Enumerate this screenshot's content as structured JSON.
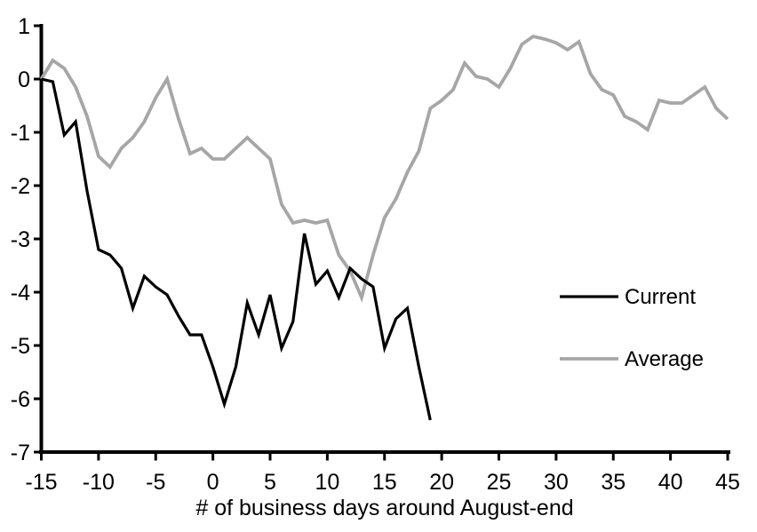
{
  "chart_data": {
    "type": "line",
    "title": "",
    "xlabel": "# of business days around August-end",
    "ylabel": "",
    "xlim": [
      -15,
      45
    ],
    "ylim": [
      -7,
      1
    ],
    "x_ticks": [
      -15,
      -10,
      -5,
      0,
      5,
      10,
      15,
      20,
      25,
      30,
      35,
      40,
      45
    ],
    "y_ticks": [
      1,
      0,
      -1,
      -2,
      -3,
      -4,
      -5,
      -6,
      -7
    ],
    "grid": false,
    "legend_position": "middle-right",
    "axis_color": "#000000",
    "series": [
      {
        "name": "Current",
        "color": "#000000",
        "stroke_width": 3.2,
        "x": [
          -15,
          -14,
          -13,
          -12,
          -11,
          -10,
          -9,
          -8,
          -7,
          -6,
          -5,
          -4,
          -3,
          -2,
          -1,
          0,
          1,
          2,
          3,
          4,
          5,
          6,
          7,
          8,
          9,
          10,
          11,
          12,
          13,
          14,
          15,
          16,
          17,
          18,
          19
        ],
        "values": [
          0,
          -0.05,
          -1.05,
          -0.8,
          -2.1,
          -3.2,
          -3.3,
          -3.55,
          -4.3,
          -3.7,
          -3.9,
          -4.05,
          -4.45,
          -4.8,
          -4.8,
          -5.4,
          -6.1,
          -5.4,
          -4.2,
          -4.8,
          -4.05,
          -5.05,
          -4.55,
          -2.9,
          -3.85,
          -3.6,
          -4.1,
          -3.55,
          -3.75,
          -3.9,
          -5.05,
          -4.5,
          -4.3,
          -5.4,
          -6.4
        ]
      },
      {
        "name": "Average",
        "color": "#a6a6a6",
        "stroke_width": 3.8,
        "x": [
          -15,
          -14,
          -13,
          -12,
          -11,
          -10,
          -9,
          -8,
          -7,
          -6,
          -5,
          -4,
          -3,
          -2,
          -1,
          0,
          1,
          2,
          3,
          4,
          5,
          6,
          7,
          8,
          9,
          10,
          11,
          12,
          13,
          14,
          15,
          16,
          17,
          18,
          19,
          20,
          21,
          22,
          23,
          24,
          25,
          26,
          27,
          28,
          29,
          30,
          31,
          32,
          33,
          34,
          35,
          36,
          37,
          38,
          39,
          40,
          41,
          42,
          43,
          44,
          45
        ],
        "values": [
          0,
          0.35,
          0.2,
          -0.15,
          -0.7,
          -1.45,
          -1.65,
          -1.3,
          -1.1,
          -0.8,
          -0.35,
          0,
          -0.75,
          -1.4,
          -1.3,
          -1.5,
          -1.5,
          -1.3,
          -1.1,
          -1.3,
          -1.5,
          -2.35,
          -2.7,
          -2.65,
          -2.7,
          -2.65,
          -3.3,
          -3.6,
          -4.1,
          -3.3,
          -2.6,
          -2.25,
          -1.75,
          -1.35,
          -0.55,
          -0.4,
          -0.2,
          0.3,
          0.05,
          0,
          -0.15,
          0.2,
          0.65,
          0.8,
          0.75,
          0.68,
          0.55,
          0.7,
          0.1,
          -0.2,
          -0.3,
          -0.7,
          -0.8,
          -0.95,
          -0.4,
          -0.45,
          -0.45,
          -0.3,
          -0.15,
          -0.55,
          -0.75
        ]
      }
    ]
  }
}
